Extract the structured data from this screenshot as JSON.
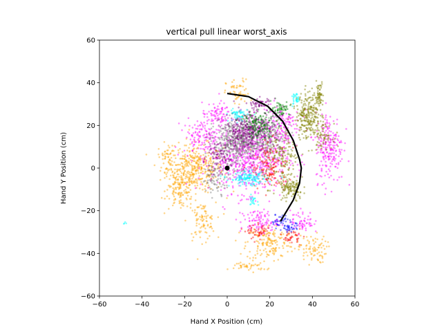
{
  "chart_data": {
    "type": "scatter",
    "title": "vertical pull linear worst_axis",
    "xlabel": "Hand X Position (cm)",
    "ylabel": "Hand Y Position (cm)",
    "xlim": [
      -60,
      60
    ],
    "ylim": [
      -60,
      60
    ],
    "xticks": [
      -60,
      -40,
      -20,
      0,
      20,
      40,
      60
    ],
    "yticks": [
      -60,
      -40,
      -20,
      0,
      20,
      40,
      60
    ],
    "grid": false,
    "legend": "none",
    "origin_marker": {
      "x": 0,
      "y": 0,
      "color": "#000000"
    },
    "target_arc": {
      "color": "#000000",
      "points": [
        [
          0,
          35
        ],
        [
          10,
          33.5
        ],
        [
          19,
          29
        ],
        [
          26,
          22
        ],
        [
          31,
          13
        ],
        [
          34,
          4
        ],
        [
          34.8,
          0
        ],
        [
          34,
          -7
        ],
        [
          31,
          -15
        ],
        [
          25,
          -25
        ]
      ]
    },
    "series": [
      {
        "color": "#ffa500",
        "clusters": [
          [
            -15,
            0,
            12,
            10,
            380
          ],
          [
            -22,
            -10,
            6,
            8,
            120
          ],
          [
            -12,
            -25,
            6,
            8,
            90
          ],
          [
            20,
            -35,
            10,
            8,
            160
          ],
          [
            40,
            -38,
            6,
            6,
            80
          ],
          [
            5,
            35,
            5,
            6,
            60
          ],
          [
            10,
            -46,
            8,
            2,
            40
          ],
          [
            -28,
            5,
            4,
            6,
            50
          ]
        ]
      },
      {
        "color": "#ff00ff",
        "clusters": [
          [
            10,
            5,
            16,
            15,
            700
          ],
          [
            48,
            10,
            6,
            15,
            220
          ],
          [
            -12,
            15,
            8,
            7,
            120
          ],
          [
            15,
            -25,
            8,
            5,
            100
          ],
          [
            25,
            20,
            8,
            10,
            140
          ],
          [
            -5,
            25,
            6,
            5,
            80
          ],
          [
            35,
            -25,
            5,
            5,
            60
          ]
        ]
      },
      {
        "color": "#808000",
        "clusters": [
          [
            38,
            25,
            5,
            10,
            250
          ],
          [
            25,
            5,
            8,
            12,
            180
          ],
          [
            30,
            -10,
            5,
            5,
            120
          ],
          [
            43,
            35,
            2,
            5,
            60
          ],
          [
            45,
            15,
            4,
            5,
            60
          ]
        ]
      },
      {
        "color": "#808080",
        "clusters": [
          [
            5,
            12,
            10,
            10,
            500
          ],
          [
            20,
            15,
            8,
            8,
            150
          ],
          [
            -5,
            -5,
            6,
            6,
            80
          ]
        ]
      },
      {
        "color": "#800080",
        "clusters": [
          [
            10,
            18,
            10,
            8,
            300
          ],
          [
            -5,
            5,
            6,
            6,
            80
          ],
          [
            15,
            30,
            5,
            3,
            50
          ]
        ]
      },
      {
        "color": "#008000",
        "clusters": [
          [
            15,
            20,
            8,
            6,
            140
          ],
          [
            25,
            28,
            4,
            3,
            60
          ]
        ]
      },
      {
        "color": "#ff0000",
        "clusters": [
          [
            20,
            0,
            8,
            10,
            120
          ],
          [
            15,
            -30,
            5,
            3,
            50
          ],
          [
            30,
            -32,
            4,
            3,
            40
          ]
        ]
      },
      {
        "color": "#0000ff",
        "clusters": [
          [
            25,
            -25,
            4,
            3,
            40
          ],
          [
            30,
            -28,
            3,
            2,
            30
          ]
        ]
      },
      {
        "color": "#00ffff",
        "clusters": [
          [
            10,
            -5,
            8,
            3,
            140
          ],
          [
            5,
            25,
            4,
            3,
            50
          ],
          [
            32,
            32,
            1.5,
            3,
            30
          ],
          [
            -48,
            -26,
            1,
            1,
            4
          ],
          [
            12,
            -15,
            2,
            2,
            20
          ]
        ]
      }
    ]
  }
}
